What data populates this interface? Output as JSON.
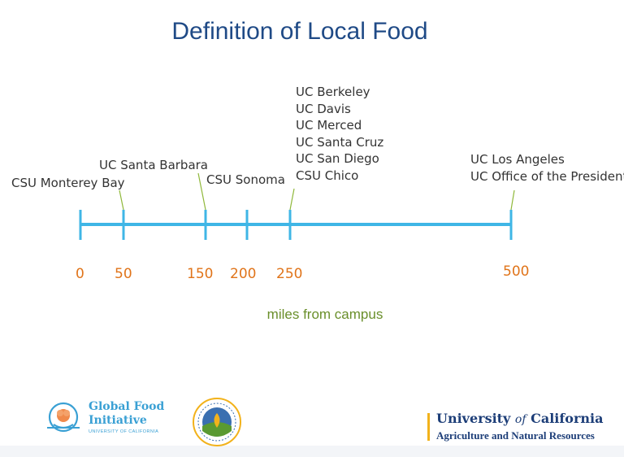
{
  "title": "Definition of Local Food",
  "subtitle": "miles from campus",
  "timeline": {
    "unit": "miles",
    "range": [
      0,
      500
    ],
    "ticks": [
      {
        "value": 0,
        "label": "0"
      },
      {
        "value": 50,
        "label": "50"
      },
      {
        "value": 150,
        "label": "150"
      },
      {
        "value": 200,
        "label": "200"
      },
      {
        "value": 250,
        "label": "250"
      },
      {
        "value": 500,
        "label": "500"
      }
    ],
    "campus_groups": [
      {
        "value": 50,
        "campuses": [
          "CSU Monterey Bay"
        ]
      },
      {
        "value": 150,
        "campuses": [
          "UC Santa Barbara"
        ]
      },
      {
        "value": 200,
        "campuses": [
          "CSU Sonoma"
        ]
      },
      {
        "value": 250,
        "campuses": [
          "UC Berkeley",
          "UC Davis",
          "UC Merced",
          "UC Santa Cruz",
          "UC San Diego",
          "CSU Chico"
        ]
      },
      {
        "value": 500,
        "campuses": [
          "UC Los Angeles",
          "UC Office of the President"
        ]
      }
    ],
    "colors": {
      "axis": "#3fb6e6",
      "tick_label": "#e0741a",
      "leader": "#8fb83a"
    }
  },
  "logos": {
    "global_food_initiative": {
      "name_line1": "Global Food",
      "name_line2": "Initiative",
      "org": "UNIVERSITY OF CALIFORNIA"
    },
    "uc_anr": {
      "university": "University",
      "of": "of",
      "state": "California",
      "division": "Agriculture and Natural Resources"
    }
  }
}
